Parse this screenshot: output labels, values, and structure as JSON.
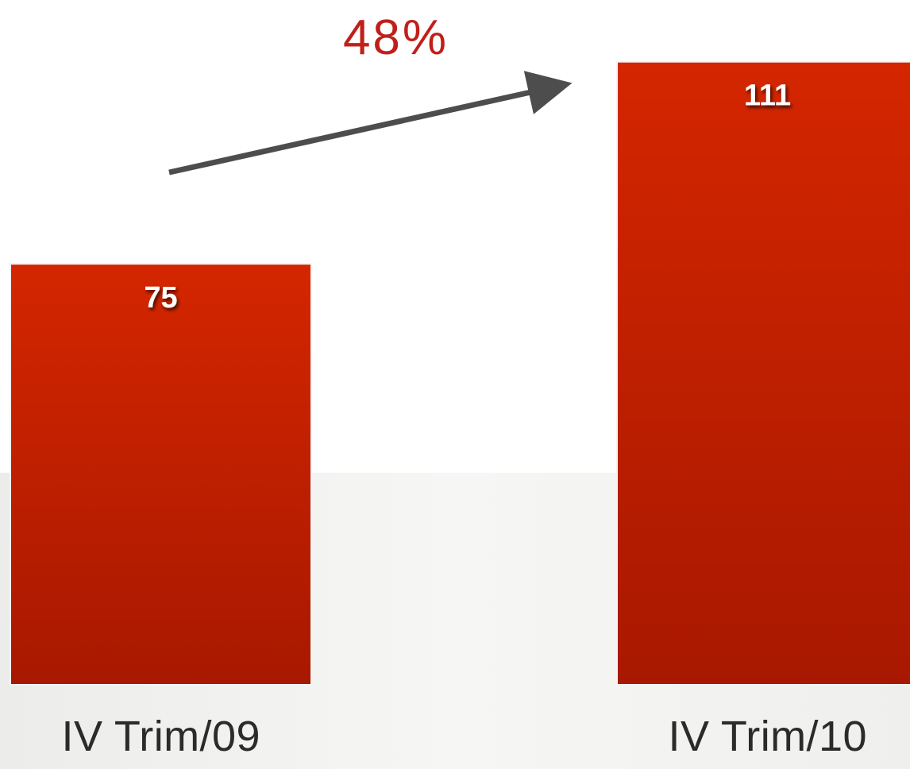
{
  "chart_data": {
    "type": "bar",
    "annotation": "48%",
    "categories": [
      "IV Trim/09",
      "IV Trim/10"
    ],
    "values": [
      75,
      111
    ],
    "color": "#c42000",
    "ylim": [
      0,
      122
    ]
  }
}
